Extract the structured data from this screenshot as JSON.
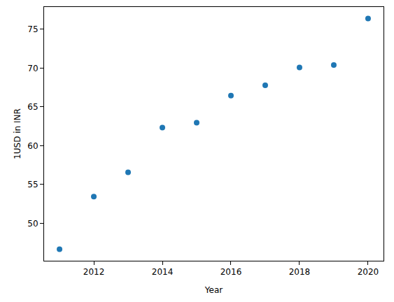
{
  "chart_data": {
    "type": "scatter",
    "x_label": "Year",
    "y_label": "1USD in INR",
    "x": [
      2011,
      2012,
      2013,
      2014,
      2015,
      2016,
      2017,
      2018,
      2019,
      2020
    ],
    "values": [
      46.67,
      53.44,
      56.57,
      62.33,
      62.97,
      66.46,
      67.79,
      70.09,
      70.39,
      76.38
    ],
    "color": "#1f77b4",
    "marker": "circle",
    "xlim": [
      2010.55,
      2020.45
    ],
    "xticks": [
      2012,
      2014,
      2016,
      2018,
      2020
    ],
    "ylim": [
      45.18,
      77.87
    ],
    "yticks": [
      50,
      55,
      60,
      65,
      70,
      75
    ],
    "grid": false
  }
}
